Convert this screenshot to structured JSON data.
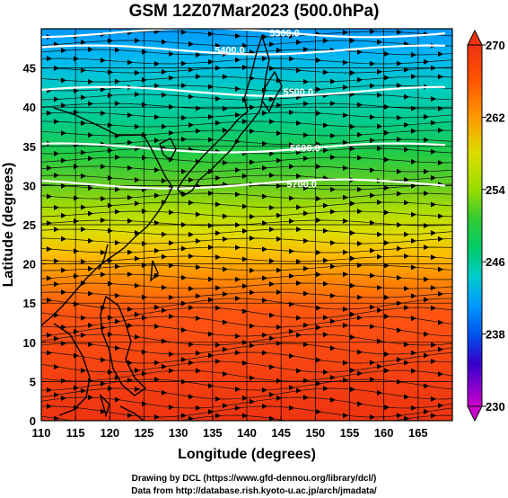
{
  "title": "GSM 12Z07Mar2023 (500.0hPa)",
  "x_axis": {
    "label": "Longitude (degrees)",
    "ticks": [
      "110",
      "115",
      "120",
      "125",
      "130",
      "135",
      "140",
      "145",
      "150",
      "155",
      "160",
      "165"
    ],
    "range": [
      110,
      170
    ]
  },
  "y_axis": {
    "label": "Latitude  (degrees)",
    "ticks": [
      "0",
      "5",
      "10",
      "15",
      "20",
      "25",
      "30",
      "35",
      "40",
      "45"
    ],
    "range": [
      0,
      50
    ]
  },
  "colorbar": {
    "ticks": [
      "270",
      "262",
      "254",
      "246",
      "238",
      "230"
    ],
    "range": [
      230,
      270
    ],
    "colors": [
      "#cc00cc",
      "#3300cc",
      "#0055ee",
      "#0099ff",
      "#00cccc",
      "#00cc66",
      "#33cc33",
      "#99dd00",
      "#dddd00",
      "#ff9900",
      "#ff5500",
      "#ee3311"
    ]
  },
  "contours": [
    {
      "label": "5300.0",
      "lon": 145.5,
      "lat": 49.5
    },
    {
      "label": "5400.0",
      "lon": 137.5,
      "lat": 47.3
    },
    {
      "label": "5500.0",
      "lon": 147.5,
      "lat": 42.0
    },
    {
      "label": "5600.0",
      "lon": 148.5,
      "lat": 34.8
    },
    {
      "label": "5700.0",
      "lon": 148.0,
      "lat": 30.2
    }
  ],
  "credits": {
    "line1": "Drawing by DCL (https://www.gfd-dennou.org/library/dcl/)",
    "line2": "Data from http://database.rish.kyoto-u.ac.jp/arch/jmadata/"
  }
}
